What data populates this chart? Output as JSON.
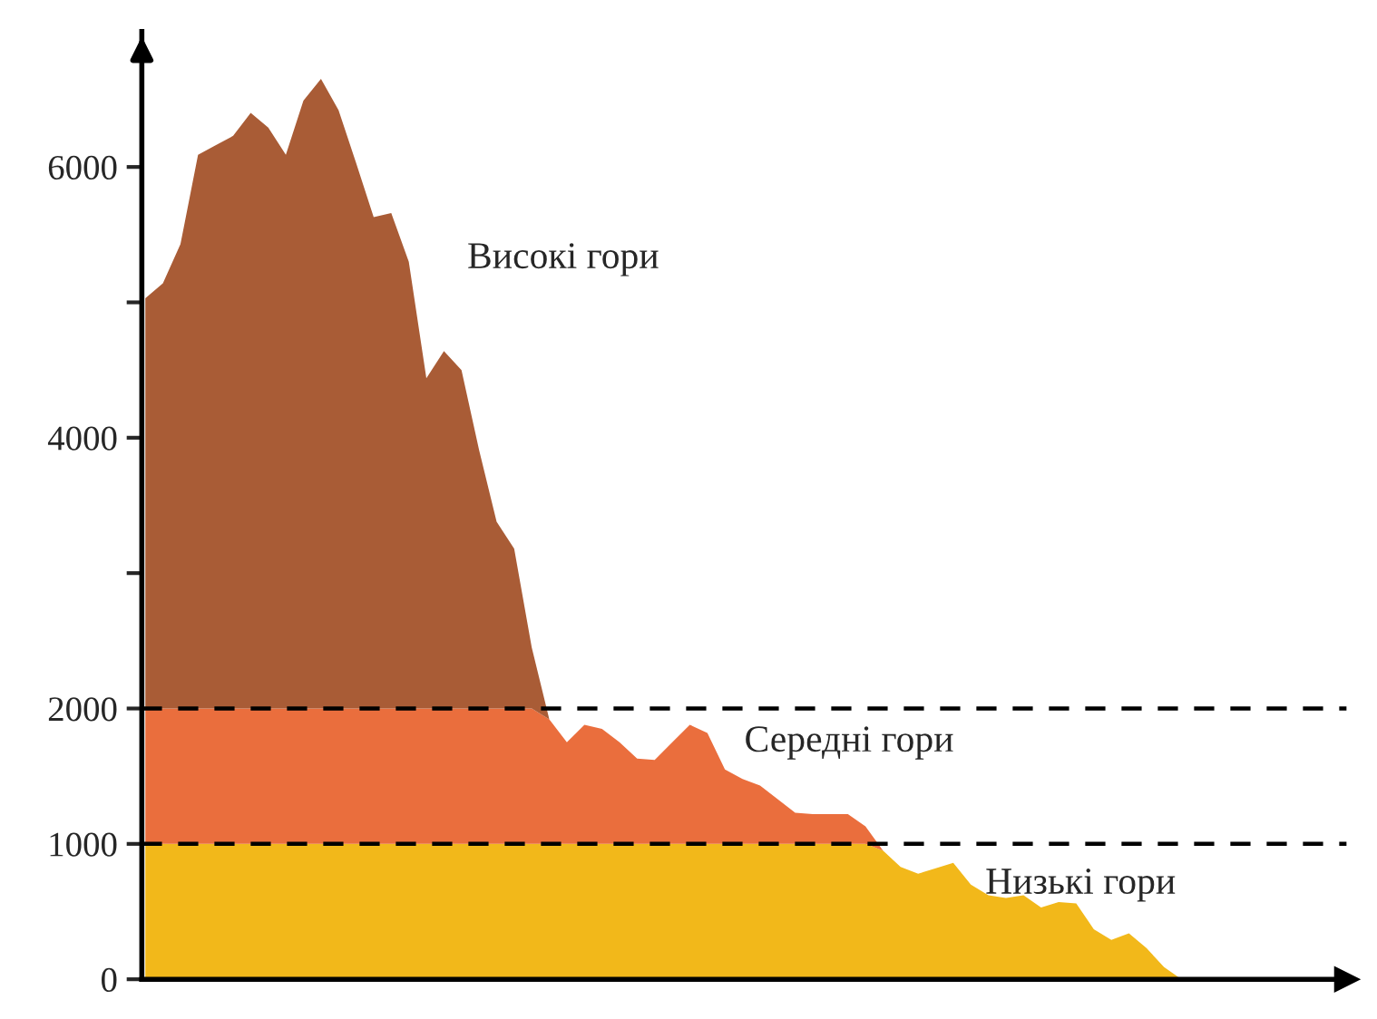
{
  "chart_data": {
    "type": "area",
    "stacked": true,
    "categories": [
      null,
      null,
      null,
      null,
      null,
      null,
      null,
      null,
      null,
      null,
      null,
      null,
      null,
      null,
      null,
      null,
      null,
      null,
      null,
      null,
      null,
      null,
      null,
      null,
      null,
      null,
      null,
      null,
      null,
      null,
      null,
      null,
      null,
      null,
      null,
      null,
      null,
      null,
      null,
      null,
      null,
      null,
      null,
      null,
      null,
      null,
      null,
      null,
      null,
      null,
      null,
      null,
      null,
      null,
      null,
      null,
      null,
      null,
      null,
      null
    ],
    "series": [
      {
        "name": "Низькі гори",
        "color": "#f2b81a",
        "values": [
          1000,
          1000,
          1000,
          1000,
          1000,
          1000,
          1000,
          1000,
          1000,
          1000,
          1000,
          1000,
          1000,
          1000,
          1000,
          1000,
          1000,
          1000,
          1000,
          1000,
          1000,
          1000,
          1000,
          1000,
          1000,
          1000,
          1000,
          1000,
          1000,
          1000,
          1000,
          1000,
          1000,
          1000,
          1000,
          1000,
          1000,
          1000,
          1000,
          1000,
          1000,
          1000,
          950,
          830,
          780,
          820,
          860,
          700,
          620,
          600,
          620,
          530,
          570,
          560,
          370,
          290,
          340,
          230,
          90,
          0
        ]
      },
      {
        "name": "Середні гори",
        "color": "#ea6e3d",
        "values": [
          1000,
          1000,
          1000,
          1000,
          1000,
          1000,
          1000,
          1000,
          1000,
          1000,
          1000,
          1000,
          1000,
          1000,
          1000,
          1000,
          1000,
          1000,
          1000,
          1000,
          1000,
          1000,
          1000,
          920,
          750,
          880,
          850,
          750,
          630,
          620,
          750,
          880,
          820,
          550,
          480,
          430,
          330,
          230,
          220,
          220,
          220,
          130,
          0,
          0,
          0,
          0,
          0,
          0,
          0,
          0,
          0,
          0,
          0,
          0,
          0,
          0,
          0,
          0,
          0,
          0
        ]
      },
      {
        "name": "Високі гори",
        "color": "#a95c36",
        "values": [
          3030,
          3140,
          3430,
          4090,
          4160,
          4230,
          4400,
          4290,
          4090,
          4490,
          4650,
          4420,
          4030,
          3630,
          3660,
          3300,
          2440,
          2640,
          2500,
          1910,
          1380,
          1180,
          450,
          0,
          0,
          0,
          0,
          0,
          0,
          0,
          0,
          0,
          0,
          0,
          0,
          0,
          0,
          0,
          0,
          0,
          0,
          0,
          0,
          0,
          0,
          0,
          0,
          0,
          0,
          0,
          0,
          0,
          0,
          0,
          0,
          0,
          0,
          0,
          0,
          0
        ]
      }
    ],
    "ylim": [
      0,
      7000
    ],
    "yticks": [
      0,
      1000,
      2000,
      {
        "value": 3000,
        "label": null
      },
      4000,
      {
        "value": 5000,
        "label": null
      },
      6000
    ],
    "ref_lines": [
      {
        "axis": "y",
        "value": 1000,
        "color": "#000000",
        "line_style": "dashed"
      },
      {
        "axis": "y",
        "value": 2000,
        "color": "#000000",
        "line_style": "dashed"
      }
    ],
    "grid": false,
    "legend": false
  }
}
